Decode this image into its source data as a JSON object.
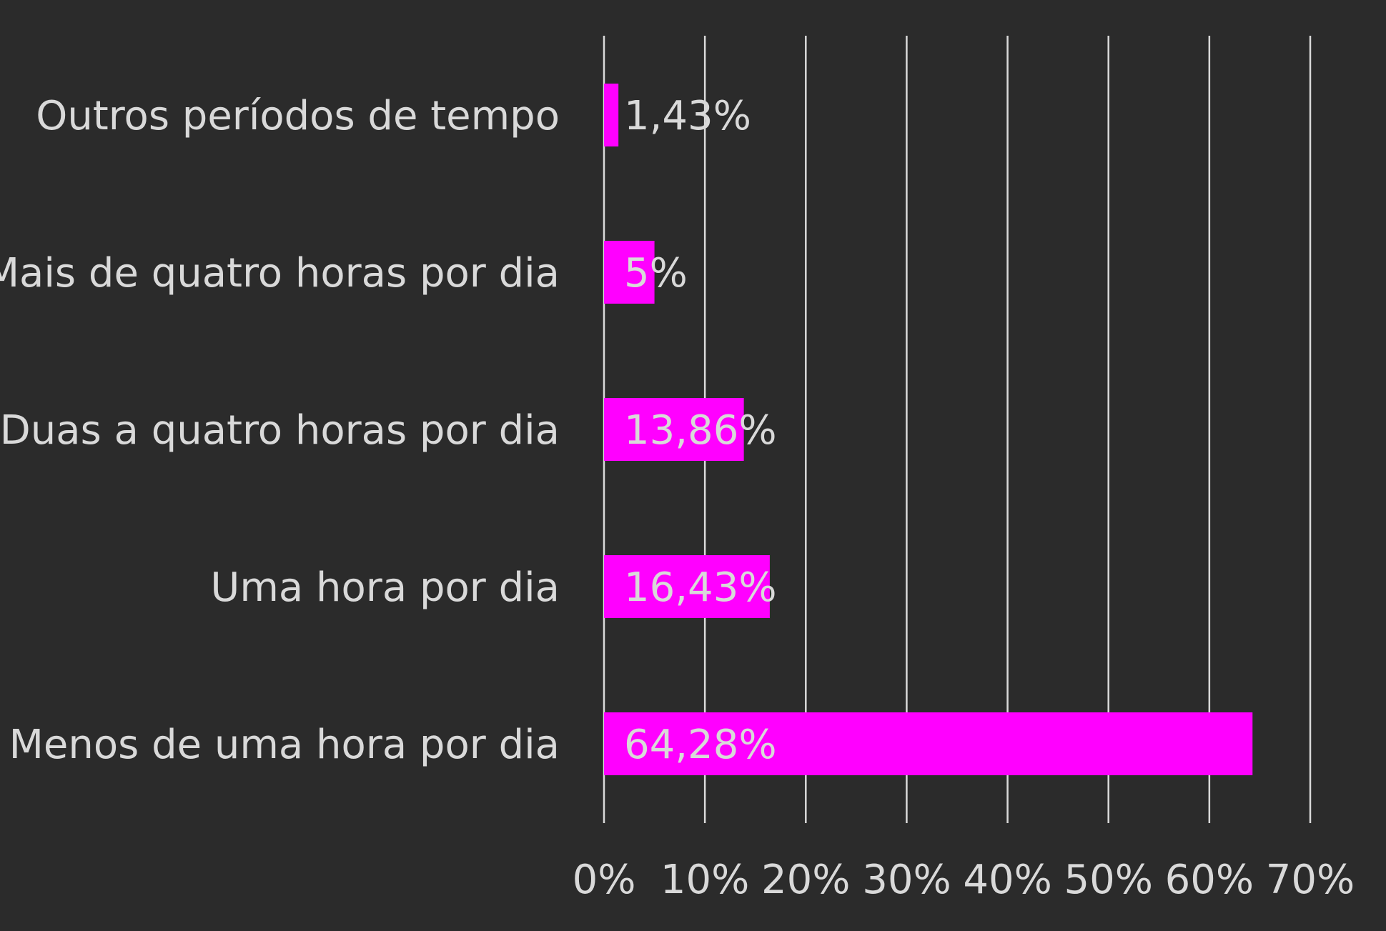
{
  "colors": {
    "background": "#2b2b2b",
    "bar": "#ff00ff",
    "gridline": "#d9d9d9",
    "text": "#d9d9d9"
  },
  "chart_data": {
    "type": "bar",
    "orientation": "horizontal",
    "title": "",
    "xlabel": "",
    "ylabel": "",
    "categories": [
      "Outros períodos de tempo",
      "Mais de quatro horas por dia",
      "Duas a quatro horas por dia",
      "Uma hora por dia",
      "Menos de uma hora por dia"
    ],
    "values": [
      1.43,
      5,
      13.86,
      16.43,
      64.28
    ],
    "data_labels": [
      "1,43%",
      "5%",
      "13,86%",
      "16,43%",
      "64,28%"
    ],
    "xlim": [
      0,
      70
    ],
    "ticks": [
      0,
      10,
      20,
      30,
      40,
      50,
      60,
      70
    ],
    "tick_labels": [
      "0%",
      "10%",
      "20%",
      "30%",
      "40%",
      "50%",
      "60%",
      "70%"
    ],
    "grid": true,
    "legend": "none"
  }
}
